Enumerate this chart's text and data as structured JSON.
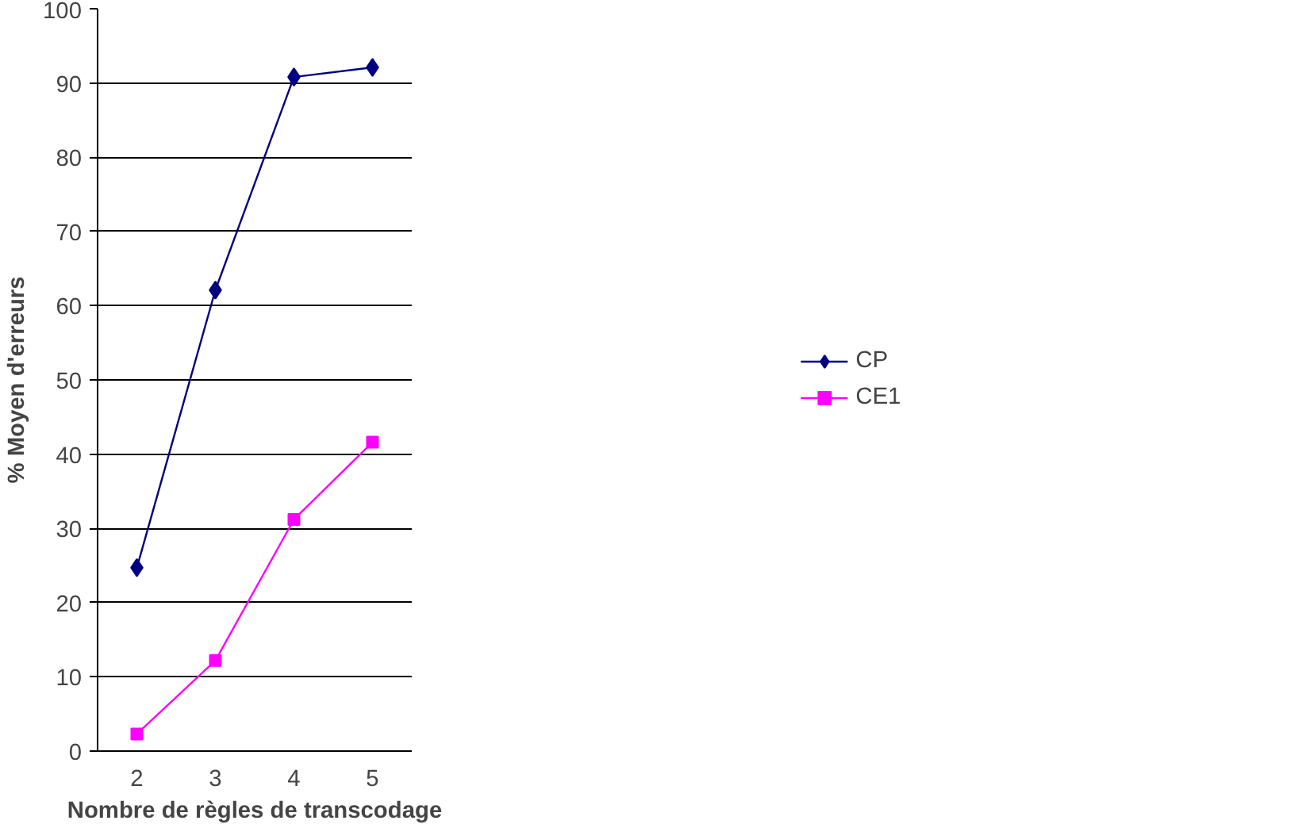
{
  "chart_data": {
    "type": "line",
    "xlabel": "Nombre de règles de transcodage",
    "ylabel": "% Moyen d'erreurs",
    "categories": [
      "2",
      "3",
      "4",
      "5"
    ],
    "series": [
      {
        "name": "CP",
        "color": "#000080",
        "marker": "diamond",
        "values": [
          24.7,
          62.1,
          90.8,
          92.1
        ]
      },
      {
        "name": "CE1",
        "color": "#ff00ff",
        "marker": "square",
        "values": [
          2.3,
          12.2,
          31.2,
          41.6
        ]
      }
    ],
    "ylim": [
      0,
      100
    ],
    "yticks": [
      0,
      10,
      20,
      30,
      40,
      50,
      60,
      70,
      80,
      90,
      100
    ],
    "grid": "y",
    "legend": "right"
  }
}
